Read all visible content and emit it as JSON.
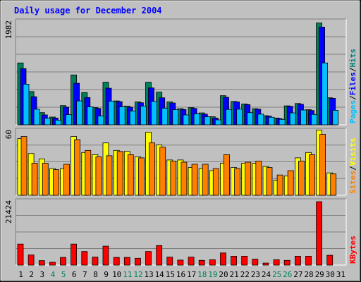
{
  "chart_data": {
    "type": "bar",
    "title": "Daily usage for December 2004",
    "days": [
      "1",
      "2",
      "3",
      "4",
      "5",
      "6",
      "7",
      "8",
      "9",
      "10",
      "11",
      "12",
      "13",
      "14",
      "15",
      "16",
      "17",
      "18",
      "19",
      "20",
      "21",
      "22",
      "23",
      "24",
      "25",
      "26",
      "27",
      "28",
      "29",
      "30",
      "31"
    ],
    "weekend_days": [
      "4",
      "5",
      "11",
      "12",
      "18",
      "19",
      "25",
      "26"
    ],
    "panels": [
      {
        "name": "hits-files-pages",
        "max_label": "1982",
        "ylim": [
          0,
          1982
        ],
        "legend": [
          "Pages",
          "/",
          "Files",
          "/",
          "Hits"
        ],
        "legend_colors": [
          "#00c0ff",
          "#000000",
          "#0000ff",
          "#000000",
          "#008080"
        ],
        "series": [
          {
            "name": "Hits",
            "color": "#00805c",
            "values": [
              1190,
              640,
              235,
              150,
              370,
              960,
              620,
              330,
              820,
              460,
              360,
              440,
              820,
              630,
              440,
              310,
              330,
              230,
              155,
              560,
              450,
              400,
              310,
              175,
              130,
              365,
              410,
              290,
              1960,
              520,
              0
            ]
          },
          {
            "name": "Files",
            "color": "#0000ff",
            "values": [
              1080,
              540,
              190,
              130,
              340,
              800,
              525,
              315,
              705,
              445,
              340,
              425,
              710,
              520,
              420,
              295,
              315,
              205,
              130,
              530,
              440,
              390,
              300,
              165,
              120,
              355,
              395,
              275,
              1880,
              510,
              0
            ]
          },
          {
            "name": "Pages",
            "color": "#00c0ff",
            "values": [
              780,
              300,
              125,
              90,
              195,
              460,
              345,
              170,
              455,
              345,
              265,
              360,
              450,
              320,
              290,
              190,
              210,
              155,
              95,
              295,
              300,
              235,
              205,
              145,
              105,
              230,
              285,
              200,
              1190,
              280,
              0
            ]
          }
        ]
      },
      {
        "name": "visits-sites",
        "max_label": "60",
        "ylim": [
          0,
          60
        ],
        "legend": [
          "Sites",
          "/",
          "Visits"
        ],
        "legend_colors": [
          "#ff8000",
          "#000000",
          "#ffff00"
        ],
        "series": [
          {
            "name": "Visits",
            "color": "#ffff00",
            "values": [
              53,
              39,
              34,
              25,
              25,
              55,
              40,
              38,
              49,
              42,
              41,
              36,
              59,
              47,
              33,
              33,
              26,
              25,
              23,
              30,
              26,
              30,
              30,
              27,
              14,
              18,
              35,
              40,
              61,
              21,
              0
            ]
          },
          {
            "name": "Sites",
            "color": "#ff8000",
            "values": [
              55,
              30,
              30,
              24,
              29,
              52,
              42,
              36,
              37,
              41,
              38,
              35,
              49,
              45,
              32,
              31,
              29,
              29,
              25,
              38,
              25,
              31,
              32,
              26,
              19,
              23,
              32,
              38,
              57,
              20,
              0
            ]
          }
        ]
      },
      {
        "name": "kbytes",
        "max_label": "21424",
        "ylim": [
          0,
          21424
        ],
        "legend": [
          "KBytes"
        ],
        "legend_colors": [
          "#ff0000"
        ],
        "series": [
          {
            "name": "KBytes",
            "color": "#ff0000",
            "values": [
              7100,
              3400,
              1500,
              950,
              2600,
              7100,
              4600,
              2700,
              6400,
              2600,
              2600,
              2300,
              4600,
              6600,
              2700,
              1700,
              2700,
              1600,
              1800,
              4100,
              3000,
              3000,
              2000,
              700,
              1800,
              1600,
              3000,
              3000,
              21400,
              3300,
              0
            ]
          }
        ]
      }
    ],
    "grid": true
  }
}
